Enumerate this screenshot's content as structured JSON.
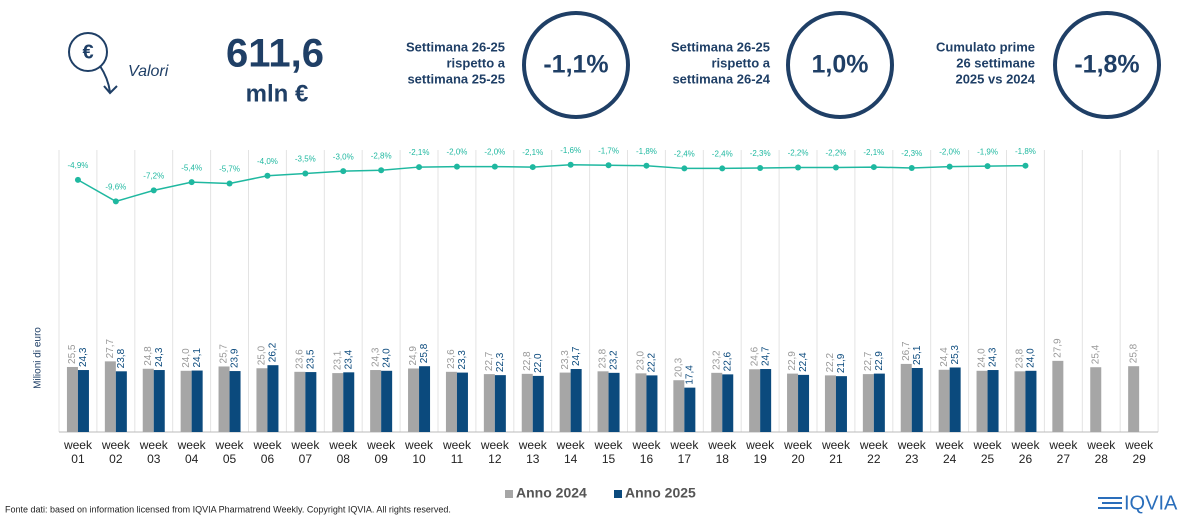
{
  "header": {
    "icon_label": "Valori",
    "total": "611,6",
    "unit": "mln €",
    "logo": "IQVIA",
    "source": "Fonte dati: based on information licensed from IQVIA Pharmatrend Weekly. Copyright IQVIA. All rights reserved."
  },
  "kpis": [
    {
      "lines": [
        "Settimana 26-25",
        "rispetto a",
        "settimana 25-25"
      ],
      "value": "-1,1%"
    },
    {
      "lines": [
        "Settimana 26-25",
        "rispetto a",
        "settimana 26-24"
      ],
      "value": "1,0%"
    },
    {
      "lines": [
        "Cumulato prime",
        "26 settimane",
        "2025 vs 2024"
      ],
      "value": "-1,8%"
    }
  ],
  "chart_data": {
    "type": "bar",
    "ylabel": "Milioni di euro",
    "categories": [
      "week 01",
      "week 02",
      "week 03",
      "week 04",
      "week 05",
      "week 06",
      "week 07",
      "week 08",
      "week 09",
      "week 10",
      "week 11",
      "week 12",
      "week 13",
      "week 14",
      "week 15",
      "week 16",
      "week 17",
      "week 18",
      "week 19",
      "week 20",
      "week 21",
      "week 22",
      "week 23",
      "week 24",
      "week 25",
      "week 26",
      "week 27",
      "week 28",
      "week 29"
    ],
    "ylim": [
      0,
      100
    ],
    "y2lim": [
      -60,
      6
    ],
    "series": [
      {
        "name": "Anno 2024",
        "color": "#a6a6a6",
        "values": [
          25.5,
          27.7,
          24.8,
          24.0,
          25.7,
          25.0,
          23.6,
          23.1,
          24.3,
          24.9,
          23.6,
          22.7,
          22.8,
          23.3,
          23.8,
          23.0,
          20.3,
          23.2,
          24.6,
          22.9,
          22.2,
          22.7,
          26.7,
          24.4,
          24.0,
          23.8,
          27.9,
          25.4,
          25.8
        ],
        "value_labels": [
          "25,5",
          "27,7",
          "24,8",
          "24,0",
          "25,7",
          "25,0",
          "23,6",
          "23,1",
          "24,3",
          "24,9",
          "23,6",
          "22,7",
          "22,8",
          "23,3",
          "23,8",
          "23,0",
          "20,3",
          "23,2",
          "24,6",
          "22,9",
          "22,2",
          "22,7",
          "26,7",
          "24,4",
          "24,0",
          "23,8",
          "27,9",
          "25,4",
          "25,8"
        ]
      },
      {
        "name": "Anno 2025",
        "color": "#0b4a7d",
        "values": [
          24.3,
          23.8,
          24.3,
          24.1,
          23.9,
          26.2,
          23.5,
          23.4,
          24.0,
          25.8,
          23.3,
          22.3,
          22.0,
          24.7,
          23.2,
          22.2,
          17.4,
          22.6,
          24.7,
          22.4,
          21.9,
          22.9,
          25.1,
          25.3,
          24.3,
          24.0,
          null,
          null,
          null
        ],
        "value_labels": [
          "24,3",
          "23,8",
          "24,3",
          "24,1",
          "23,9",
          "26,2",
          "23,5",
          "23,4",
          "24,0",
          "25,8",
          "23,3",
          "22,3",
          "22,0",
          "24,7",
          "23,2",
          "22,2",
          "17,4",
          "22,6",
          "24,7",
          "22,4",
          "21,9",
          "22,9",
          "25,1",
          "25,3",
          "24,3",
          "24,0",
          null,
          null,
          null
        ]
      }
    ],
    "line": {
      "color": "#1fb8a0",
      "axis": "y2",
      "values": [
        -4.9,
        -9.6,
        -7.2,
        -5.4,
        -5.7,
        -4.0,
        -3.5,
        -3.0,
        -2.8,
        -2.1,
        -2.0,
        -2.0,
        -2.1,
        -1.6,
        -1.7,
        -1.8,
        -2.4,
        -2.4,
        -2.3,
        -2.2,
        -2.2,
        -2.1,
        -2.3,
        -2.0,
        -1.9,
        -1.8,
        null,
        null,
        null
      ],
      "value_labels": [
        "-4,9%",
        "-9,6%",
        "-7,2%",
        "-5,4%",
        "-5,7%",
        "-4,0%",
        "-3,5%",
        "-3,0%",
        "-2,8%",
        "-2,1%",
        "-2,0%",
        "-2,0%",
        "-2,1%",
        "-1,6%",
        "-1,7%",
        "-1,8%",
        "-2,4%",
        "-2,4%",
        "-2,3%",
        "-2,2%",
        "-2,2%",
        "-2,1%",
        "-2,3%",
        "-2,0%",
        "-1,9%",
        "-1,8%",
        null,
        null,
        null
      ]
    }
  }
}
